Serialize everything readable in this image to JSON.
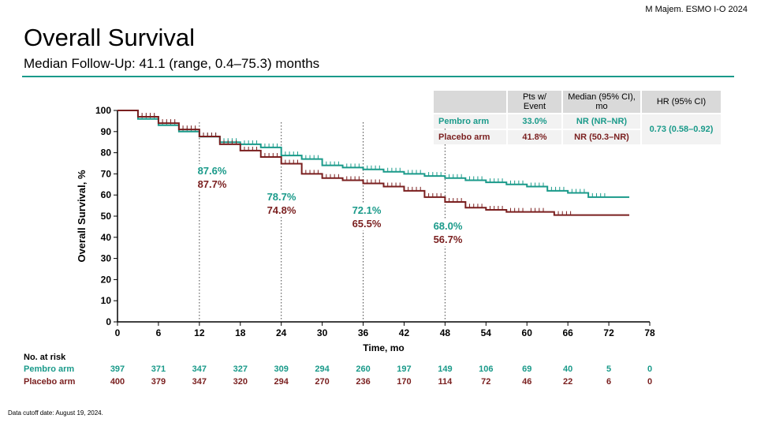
{
  "citation": "M Majem. ESMO I-O 2024",
  "title": "Overall Survival",
  "subtitle": "Median Follow-Up: 41.1 (range, 0.4–75.3) months",
  "footer": "Data cutoff date: August 19, 2024.",
  "colors": {
    "pembro": "#1a9a8a",
    "placebo": "#7a1f1f",
    "rule": "#1a9a8a"
  },
  "summary_table": {
    "headers": [
      "",
      "Pts w/ Event",
      "Median (95% CI), mo",
      "HR (95% CI)"
    ],
    "rows": [
      {
        "arm": "Pembro arm",
        "events": "33.0%",
        "median": "NR (NR–NR)"
      },
      {
        "arm": "Placebo arm",
        "events": "41.8%",
        "median": "NR (50.3–NR)"
      }
    ],
    "hr": "0.73 (0.58–0.92)"
  },
  "chart_data": {
    "type": "line",
    "subtype": "kaplan-meier",
    "xlabel": "Time, mo",
    "ylabel": "Overall Survival, %",
    "xlim": [
      0,
      78
    ],
    "ylim": [
      0,
      100
    ],
    "xticks": [
      0,
      6,
      12,
      18,
      24,
      30,
      36,
      42,
      48,
      54,
      60,
      66,
      72,
      78
    ],
    "yticks": [
      0,
      10,
      20,
      30,
      40,
      50,
      60,
      70,
      80,
      90,
      100
    ],
    "grid": false,
    "series": [
      {
        "name": "Pembro arm",
        "x": [
          0,
          3,
          6,
          9,
          12,
          15,
          18,
          21,
          24,
          27,
          30,
          33,
          36,
          39,
          42,
          45,
          48,
          51,
          54,
          57,
          60,
          63,
          66,
          69,
          75
        ],
        "y": [
          100,
          96,
          93,
          90,
          87.6,
          85,
          84,
          82.5,
          78.7,
          77,
          74,
          73,
          72.1,
          71,
          70,
          69,
          68,
          67,
          66,
          65,
          64,
          62,
          61,
          59,
          59
        ]
      },
      {
        "name": "Placebo arm",
        "x": [
          0,
          3,
          6,
          9,
          12,
          15,
          18,
          21,
          24,
          27,
          30,
          33,
          36,
          39,
          42,
          45,
          48,
          51,
          54,
          57,
          60,
          64,
          75
        ],
        "y": [
          100,
          97,
          94,
          91,
          87.7,
          84,
          81,
          78,
          74.8,
          70,
          68,
          67,
          65.5,
          64,
          62,
          59,
          56.7,
          54,
          53,
          52,
          52,
          50.5,
          50.5
        ]
      }
    ],
    "landmarks": [
      {
        "x": 12,
        "pembro": "87.6%",
        "placebo": "87.7%"
      },
      {
        "x": 24,
        "pembro": "78.7%",
        "placebo": "74.8%"
      },
      {
        "x": 36,
        "pembro": "72.1%",
        "placebo": "65.5%"
      },
      {
        "x": 48,
        "pembro": "68.0%",
        "placebo": "56.7%"
      }
    ],
    "at_risk": {
      "label": "No. at risk",
      "times": [
        0,
        6,
        12,
        18,
        24,
        30,
        36,
        42,
        48,
        54,
        60,
        66,
        72,
        78
      ],
      "rows": [
        {
          "name": "Pembro arm",
          "values": [
            397,
            371,
            347,
            327,
            309,
            294,
            260,
            197,
            149,
            106,
            69,
            40,
            5,
            0
          ]
        },
        {
          "name": "Placebo arm",
          "values": [
            400,
            379,
            347,
            320,
            294,
            270,
            236,
            170,
            114,
            72,
            46,
            22,
            6,
            0
          ]
        }
      ]
    }
  }
}
